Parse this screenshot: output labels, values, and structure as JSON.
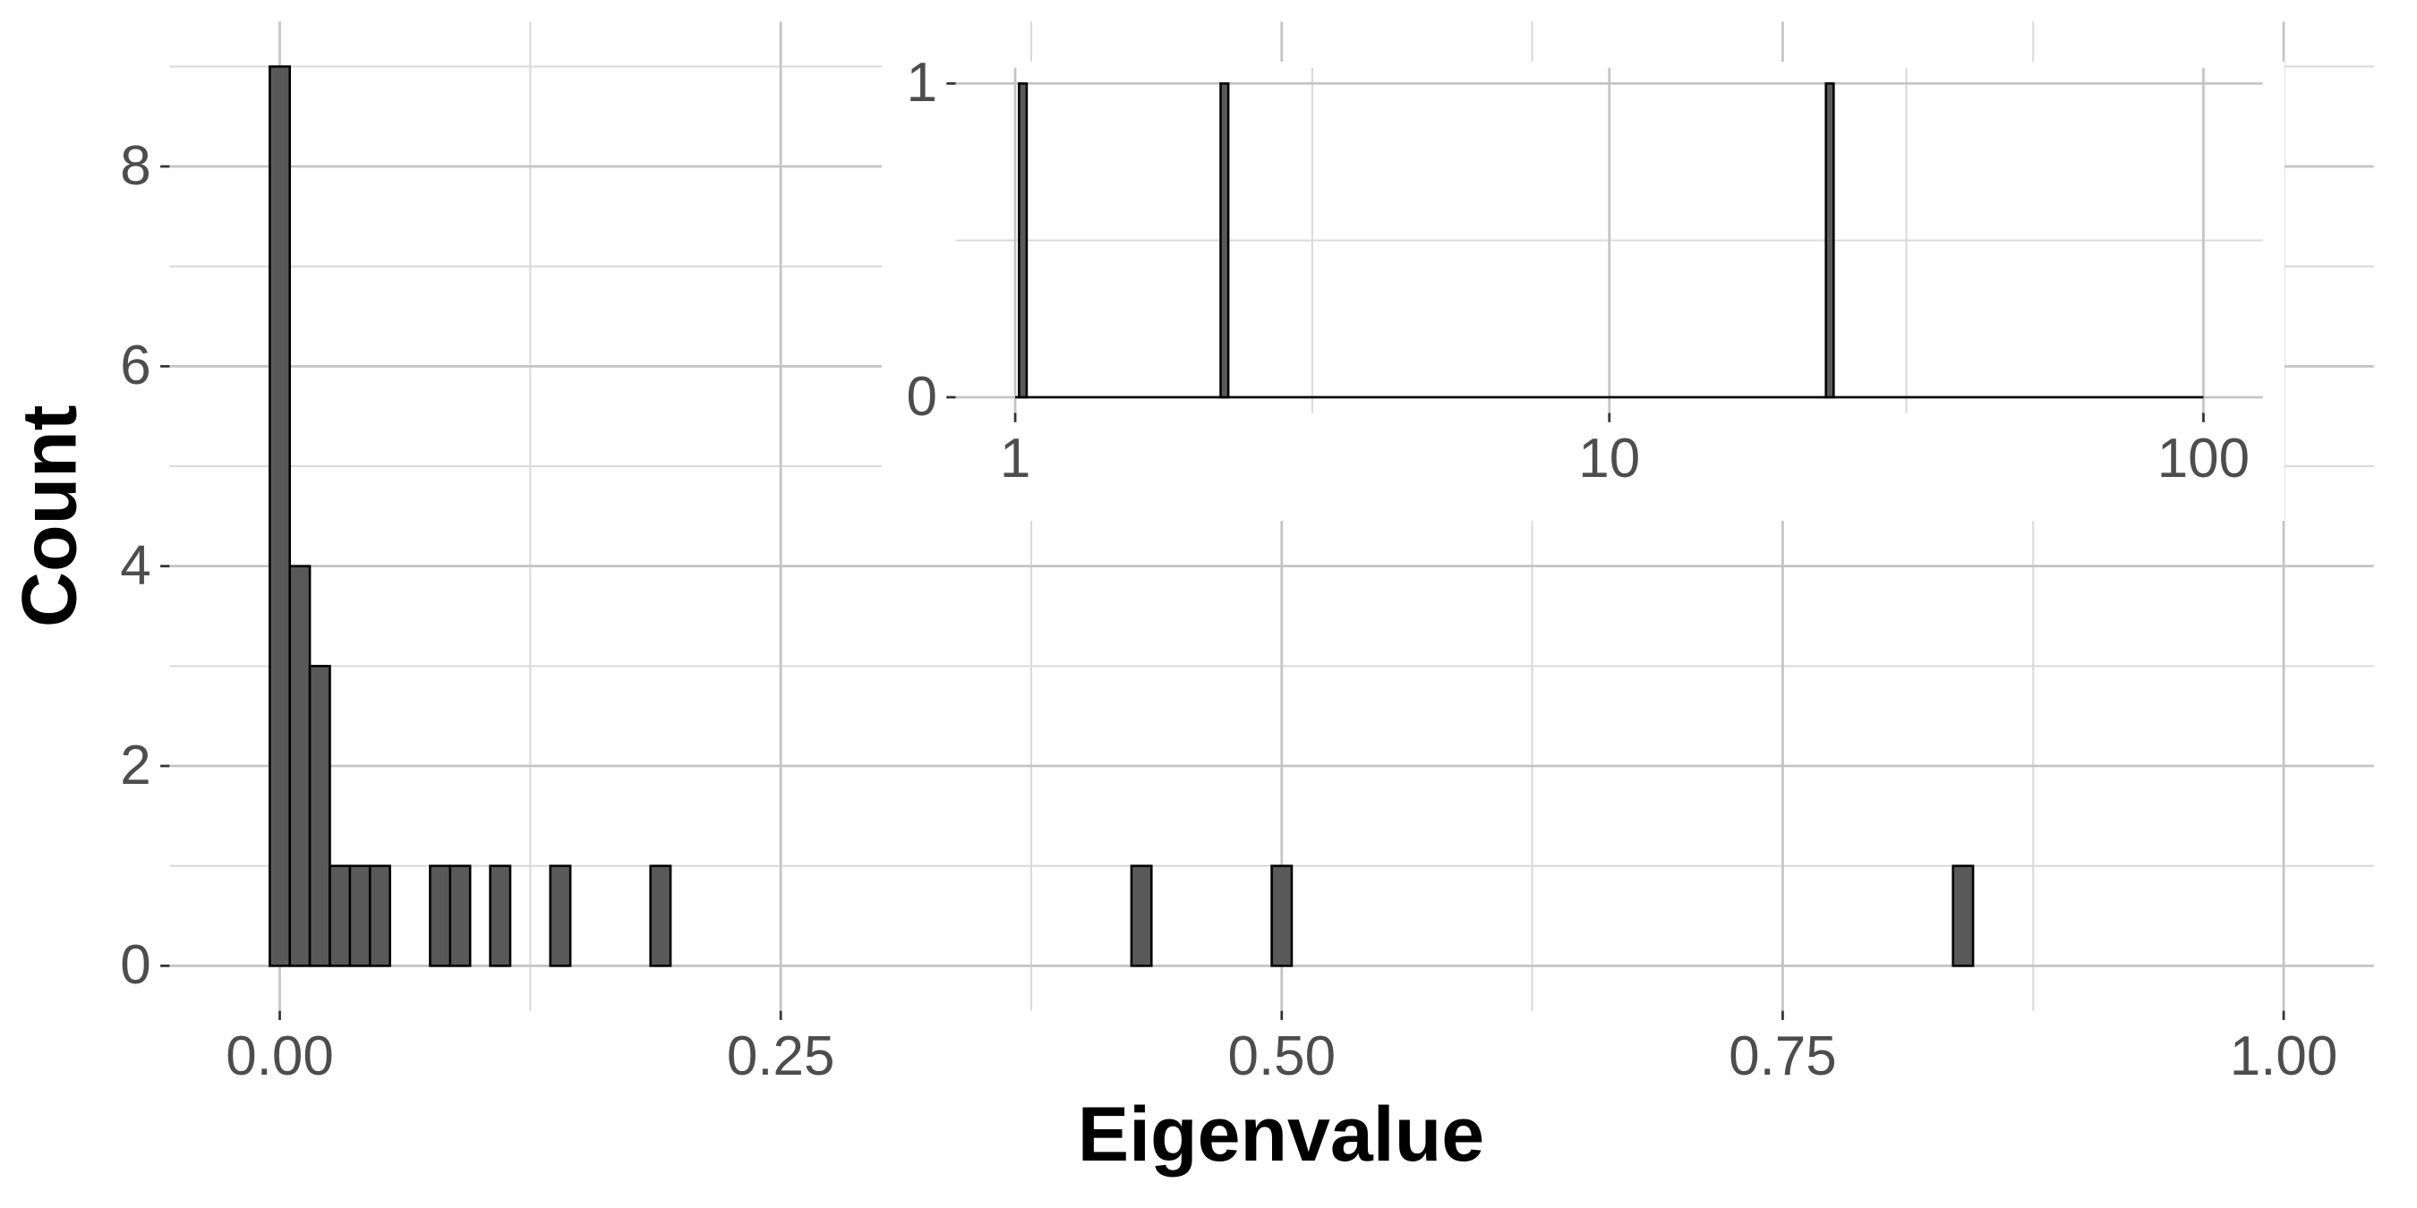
{
  "chart_data": [
    {
      "type": "histogram",
      "xlabel": "Eigenvalue",
      "ylabel": "Count",
      "bins": [
        -0.005,
        0.005,
        0.015,
        0.025,
        0.035,
        0.045,
        0.055,
        0.065,
        0.075,
        0.085,
        0.095,
        0.105,
        0.115,
        0.125,
        0.135,
        0.145,
        0.155,
        0.165,
        0.175,
        0.185,
        0.195,
        0.205,
        0.215,
        0.225,
        0.235,
        0.245,
        0.255,
        0.265,
        0.275,
        0.285,
        0.295,
        0.305,
        0.315,
        0.325,
        0.335,
        0.345,
        0.355,
        0.365,
        0.375,
        0.385,
        0.395,
        0.405,
        0.415,
        0.425,
        0.435,
        0.445,
        0.455,
        0.465,
        0.475,
        0.485,
        0.495,
        0.505,
        0.515,
        0.525,
        0.535,
        0.545,
        0.555,
        0.565,
        0.575,
        0.585,
        0.595,
        0.605,
        0.615,
        0.625,
        0.635,
        0.645,
        0.655,
        0.665,
        0.675,
        0.685,
        0.695,
        0.705,
        0.715,
        0.725,
        0.735,
        0.745,
        0.755,
        0.765,
        0.775,
        0.785,
        0.795,
        0.805,
        0.815,
        0.825,
        0.835,
        0.845,
        0.855,
        0.865,
        0.875,
        0.885,
        0.895,
        0.905,
        0.915,
        0.925,
        0.935,
        0.945,
        0.955,
        0.965,
        0.975,
        0.985,
        0.995
      ],
      "values": [
        9,
        4,
        3,
        1,
        1,
        1,
        0,
        0,
        1,
        1,
        0,
        1,
        0,
        0,
        1,
        0,
        0,
        0,
        0,
        1,
        0,
        0,
        0,
        0,
        0,
        0,
        0,
        0,
        0,
        0,
        0,
        0,
        0,
        0,
        0,
        0,
        0,
        0,
        0,
        0,
        0,
        0,
        0,
        1,
        0,
        0,
        0,
        0,
        0,
        0,
        1,
        0,
        0,
        0,
        0,
        0,
        0,
        0,
        0,
        0,
        0,
        0,
        0,
        0,
        0,
        0,
        0,
        0,
        0,
        0,
        0,
        0,
        0,
        0,
        0,
        0,
        0,
        0,
        0,
        0,
        0,
        0,
        0,
        0,
        1,
        0,
        0,
        0,
        0,
        0,
        0,
        0,
        0,
        0,
        0,
        0,
        0,
        0,
        0,
        0
      ],
      "color": "#595959",
      "xlim": [
        -0.055,
        1.045
      ],
      "ylim": [
        -0.45,
        9.45
      ],
      "xticks": [
        {
          "value": 0,
          "label": "0.00"
        },
        0.25,
        {
          "value": 0.5,
          "label": "0.50"
        },
        0.75,
        {
          "value": 1,
          "label": "1.00"
        }
      ],
      "xminor": [
        0.125,
        0.375,
        0.625,
        0.875
      ],
      "yticks": [
        0,
        2,
        4,
        6,
        8
      ],
      "yminor": [
        1,
        3,
        5,
        7,
        9
      ],
      "grid": true
    },
    {
      "type": "bar",
      "x": [
        1.03,
        2.25,
        23.5
      ],
      "values": [
        1,
        1,
        1
      ],
      "color": "#595959",
      "xscale": "log",
      "xlim": [
        0.794,
        125.9
      ],
      "ylim": [
        -0.05,
        1.05
      ],
      "xticks": [
        1,
        10,
        100
      ],
      "xminor": [
        3.162,
        31.62
      ],
      "yticks": [
        0,
        1
      ],
      "yminor": [
        0.5
      ],
      "grid": true
    }
  ]
}
